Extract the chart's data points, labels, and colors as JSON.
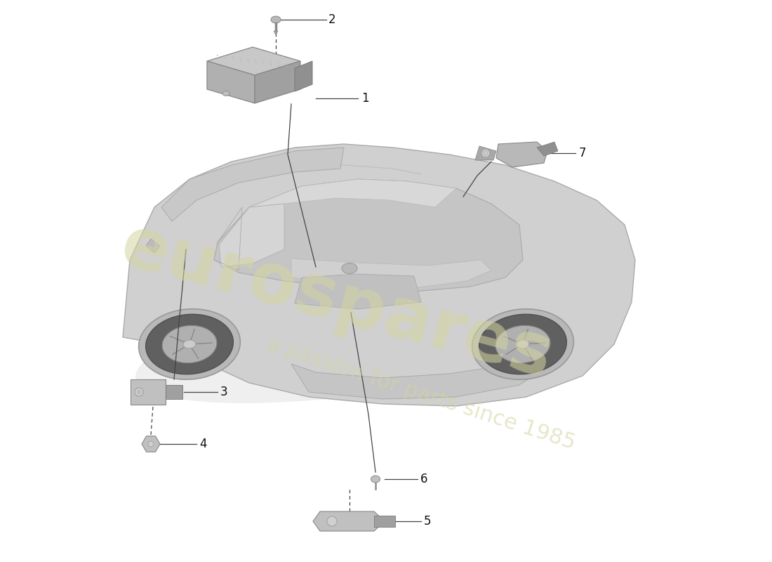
{
  "bg_color": "#ffffff",
  "watermark1": "eurospares",
  "watermark2": "a passion for parts since 1985",
  "wm1_color": "#d4d4a0",
  "wm2_color": "#d4d4a0",
  "wm1_alpha": 0.55,
  "wm2_alpha": 0.55,
  "wm1_fontsize": 72,
  "wm2_fontsize": 22,
  "wm1_rotation": -15,
  "wm2_rotation": -18,
  "label_fontsize": 12,
  "label_color": "#111111",
  "line_color": "#444444",
  "line_width": 0.9,
  "dash_pattern": [
    4,
    3
  ],
  "car_body_color": "#d0d0d0",
  "car_body_edge": "#aaaaaa",
  "car_shadow_color": "#e8e8e8",
  "part_fill": "#c0c0c0",
  "part_edge": "#888888",
  "part_dark": "#a8a8a8",
  "part_light": "#d8d8d8"
}
